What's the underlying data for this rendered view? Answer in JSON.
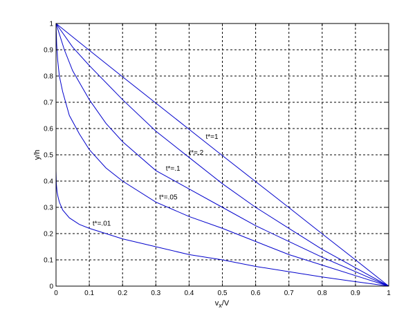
{
  "chart_data": {
    "type": "line",
    "xlabel": "v",
    "xlabel_sub": "x",
    "xlabel_suffix": "/V",
    "ylabel": "y/h",
    "xlim": [
      0,
      1
    ],
    "ylim": [
      0,
      1
    ],
    "grid": true,
    "x_ticks": [
      "0",
      "0.1",
      "0.2",
      "0.3",
      "0.4",
      "0.5",
      "0.6",
      "0.7",
      "0.8",
      "0.9",
      "1"
    ],
    "y_ticks": [
      "0",
      "0.1",
      "0.2",
      "0.3",
      "0.4",
      "0.5",
      "0.6",
      "0.7",
      "0.8",
      "0.9",
      "1"
    ],
    "colors": {
      "series": "#0000cc",
      "grid": "#000000",
      "axes": "#000000"
    },
    "series": [
      {
        "label": "t*=1",
        "label_at": [
          0.45,
          0.56
        ],
        "x": [
          0,
          0.1,
          0.2,
          0.3,
          0.4,
          0.5,
          0.6,
          0.7,
          0.8,
          0.9,
          1.0
        ],
        "y": [
          1.0,
          0.898,
          0.797,
          0.697,
          0.597,
          0.497,
          0.398,
          0.299,
          0.199,
          0.1,
          0.0
        ]
      },
      {
        "label": "t*=.2",
        "label_at": [
          0.4,
          0.5
        ],
        "x": [
          0,
          0.05,
          0.1,
          0.2,
          0.3,
          0.4,
          0.5,
          0.6,
          0.7,
          0.8,
          0.9,
          1.0
        ],
        "y": [
          1.0,
          0.91,
          0.84,
          0.71,
          0.59,
          0.49,
          0.39,
          0.3,
          0.22,
          0.14,
          0.07,
          0.0
        ]
      },
      {
        "label": "t*=.1",
        "label_at": [
          0.33,
          0.44
        ],
        "x": [
          0,
          0.01,
          0.025,
          0.05,
          0.1,
          0.15,
          0.2,
          0.3,
          0.4,
          0.5,
          0.6,
          0.7,
          0.8,
          0.9,
          1.0
        ],
        "y": [
          1.0,
          0.96,
          0.9,
          0.82,
          0.71,
          0.62,
          0.55,
          0.44,
          0.37,
          0.3,
          0.23,
          0.17,
          0.11,
          0.055,
          0.0
        ]
      },
      {
        "label": "t*=.05",
        "label_at": [
          0.31,
          0.33
        ],
        "x": [
          0,
          0.002,
          0.005,
          0.01,
          0.02,
          0.04,
          0.07,
          0.1,
          0.15,
          0.2,
          0.3,
          0.4,
          0.5,
          0.6,
          0.7,
          0.8,
          0.9,
          1.0
        ],
        "y": [
          1.0,
          0.92,
          0.86,
          0.8,
          0.74,
          0.65,
          0.58,
          0.52,
          0.45,
          0.4,
          0.32,
          0.265,
          0.22,
          0.17,
          0.12,
          0.08,
          0.04,
          0.0
        ]
      },
      {
        "label": "t*=.01",
        "label_at": [
          0.11,
          0.23
        ],
        "x": [
          0,
          0.001,
          0.003,
          0.006,
          0.01,
          0.02,
          0.04,
          0.07,
          0.1,
          0.15,
          0.2,
          0.3,
          0.4,
          0.5,
          0.6,
          0.7,
          0.8,
          0.9,
          1.0
        ],
        "y": [
          0.44,
          0.39,
          0.36,
          0.34,
          0.32,
          0.29,
          0.26,
          0.235,
          0.22,
          0.2,
          0.18,
          0.15,
          0.12,
          0.1,
          0.075,
          0.055,
          0.035,
          0.017,
          0.0
        ]
      }
    ]
  }
}
